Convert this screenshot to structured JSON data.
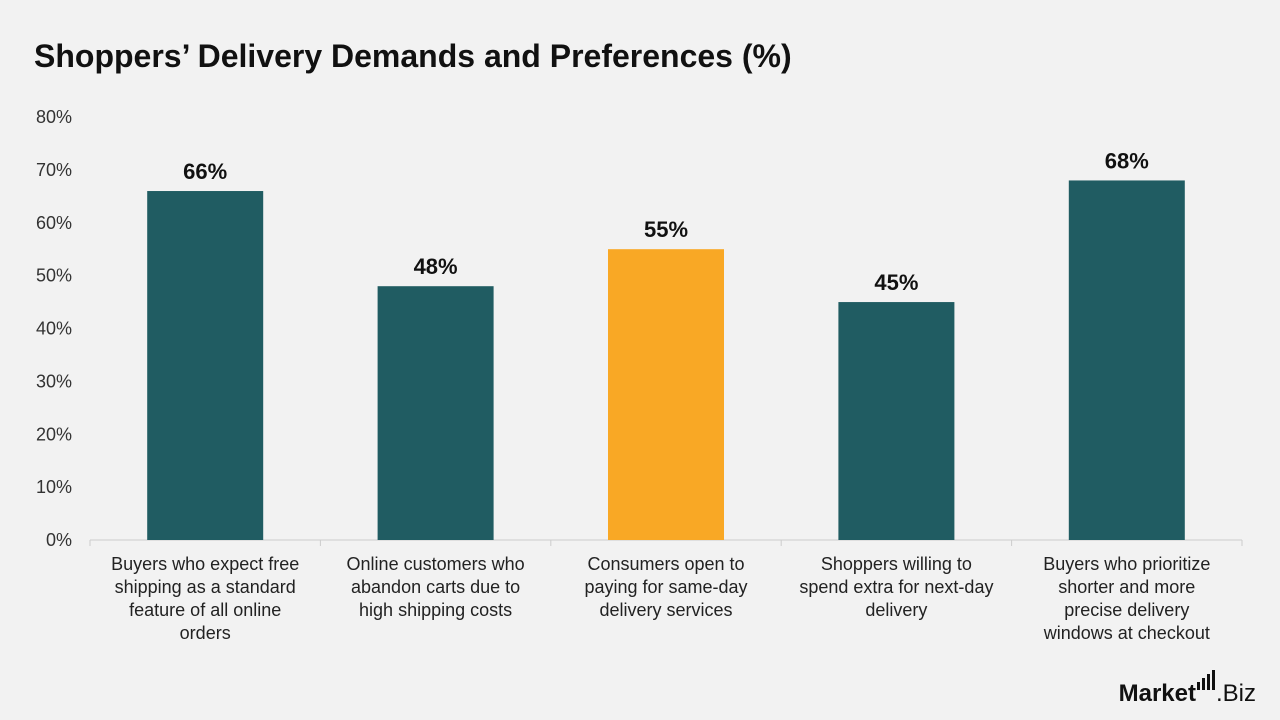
{
  "title": "Shoppers’ Delivery Demands and Preferences (%)",
  "logo": {
    "brand": "Market",
    "suffix": ".Biz"
  },
  "colors": {
    "primary": "#205c62",
    "highlight": "#f9a825",
    "axis": "#cccccc"
  },
  "chart_data": {
    "type": "bar",
    "categories": [
      [
        "Buyers who expect free",
        "shipping as a standard",
        "feature of all online",
        "orders"
      ],
      [
        "Online customers who",
        "abandon carts due to",
        "high shipping costs"
      ],
      [
        "Consumers open to",
        "paying for same-day",
        "delivery services"
      ],
      [
        "Shoppers willing to",
        "spend extra for next-day",
        "delivery"
      ],
      [
        "Buyers who prioritize",
        "shorter and more",
        "precise delivery",
        "windows at checkout"
      ]
    ],
    "values": [
      66,
      48,
      55,
      45,
      68
    ],
    "data_labels": [
      "66%",
      "48%",
      "55%",
      "45%",
      "68%"
    ],
    "highlight_index": 2,
    "ylim": [
      0,
      80
    ],
    "yticks": [
      0,
      10,
      20,
      30,
      40,
      50,
      60,
      70,
      80
    ],
    "ytick_labels": [
      "0%",
      "10%",
      "20%",
      "30%",
      "40%",
      "50%",
      "60%",
      "70%",
      "80%"
    ],
    "grid": false,
    "legend": "none"
  }
}
